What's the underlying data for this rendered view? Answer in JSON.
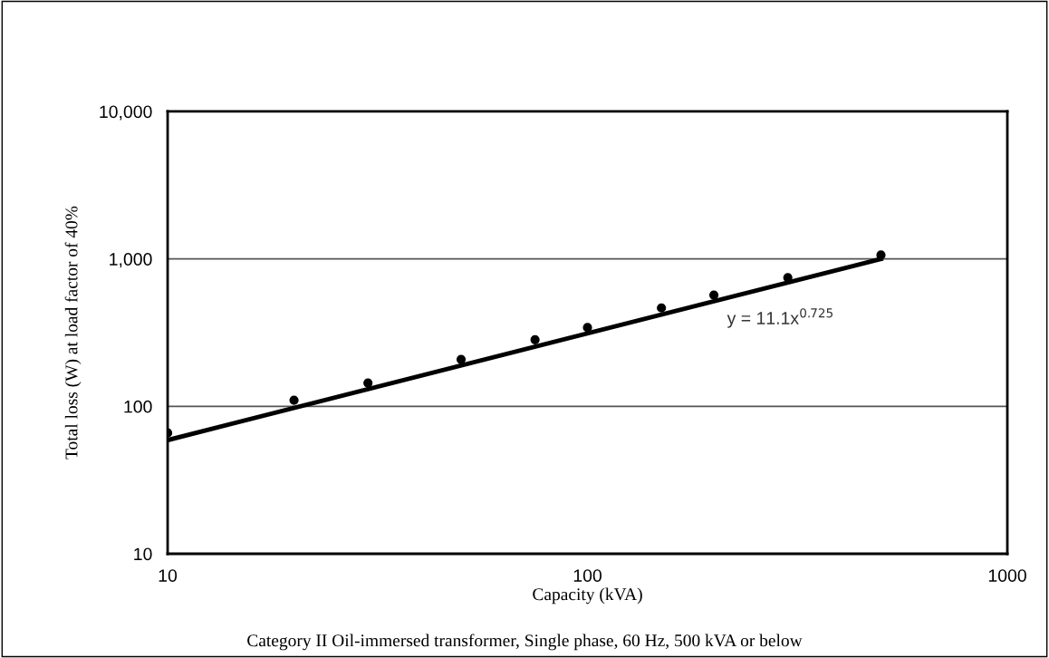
{
  "chart_data": {
    "type": "scatter",
    "xlabel": "Capacity (kVA)",
    "ylabel": "Total loss (W) at load factor of 40%",
    "log": "xy",
    "grid": "y",
    "xlim": [
      10,
      1000
    ],
    "xticks": [
      10,
      100,
      1000
    ],
    "ylim": [
      10,
      10000
    ],
    "yticks": [
      10,
      100,
      {
        "value": 1000,
        "label": "1,000"
      },
      {
        "value": 10000,
        "label": "10,000"
      }
    ],
    "series": [
      {
        "color": "#000000",
        "marker": "circle",
        "x": [
          10,
          20,
          30,
          50,
          75,
          100,
          150,
          200,
          300,
          500
        ],
        "values": [
          66,
          110,
          144,
          208,
          283,
          342,
          465,
          568,
          746,
          1062
        ]
      },
      {
        "type": "line",
        "color": "#000000",
        "line_style": "solid",
        "x": [
          10,
          500
        ],
        "values": [
          59,
          1000
        ]
      }
    ],
    "annotations": [
      "y = 11.1x$^{0.725}$",
      "Category II Oil-immersed transformer, Single phase, 60 Hz, 500 kVA or below"
    ]
  }
}
